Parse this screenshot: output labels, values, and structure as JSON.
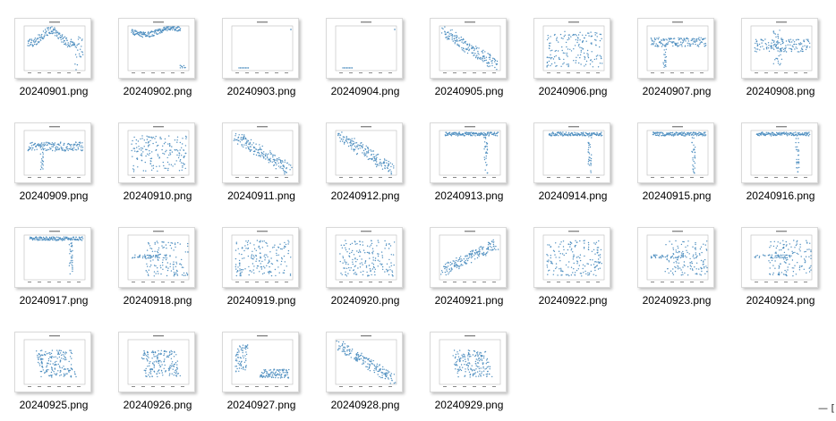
{
  "files": [
    {
      "name": "20240901.png",
      "shape": "wave"
    },
    {
      "name": "20240902.png",
      "shape": "band-top"
    },
    {
      "name": "20240903.png",
      "shape": "sparse-corner"
    },
    {
      "name": "20240904.png",
      "shape": "sparse-corner"
    },
    {
      "name": "20240905.png",
      "shape": "diagonal-down"
    },
    {
      "name": "20240906.png",
      "shape": "cloud-wide"
    },
    {
      "name": "20240907.png",
      "shape": "band-mid"
    },
    {
      "name": "20240908.png",
      "shape": "cross"
    },
    {
      "name": "20240909.png",
      "shape": "band-mid"
    },
    {
      "name": "20240910.png",
      "shape": "cloud-wide"
    },
    {
      "name": "20240911.png",
      "shape": "diagonal-down"
    },
    {
      "name": "20240912.png",
      "shape": "diagonal-down"
    },
    {
      "name": "20240913.png",
      "shape": "top-line-drop"
    },
    {
      "name": "20240914.png",
      "shape": "top-line-drop"
    },
    {
      "name": "20240915.png",
      "shape": "top-line-drop"
    },
    {
      "name": "20240916.png",
      "shape": "top-line-drop"
    },
    {
      "name": "20240917.png",
      "shape": "top-line-drop"
    },
    {
      "name": "20240918.png",
      "shape": "cloud-right"
    },
    {
      "name": "20240919.png",
      "shape": "cloud-wide"
    },
    {
      "name": "20240920.png",
      "shape": "cloud-wide"
    },
    {
      "name": "20240921.png",
      "shape": "diagonal-up"
    },
    {
      "name": "20240922.png",
      "shape": "cloud-wide"
    },
    {
      "name": "20240923.png",
      "shape": "cloud-right"
    },
    {
      "name": "20240924.png",
      "shape": "cloud-right"
    },
    {
      "name": "20240925.png",
      "shape": "blob-center"
    },
    {
      "name": "20240926.png",
      "shape": "blob-center"
    },
    {
      "name": "20240927.png",
      "shape": "left-then-low"
    },
    {
      "name": "20240928.png",
      "shape": "diagonal-down"
    },
    {
      "name": "20240929.png",
      "shape": "blob-center"
    }
  ],
  "colors": {
    "point": "#4f8fc0",
    "frame": "#bcbcbc",
    "axis": "#888888"
  },
  "corner_glyph": "— ["
}
